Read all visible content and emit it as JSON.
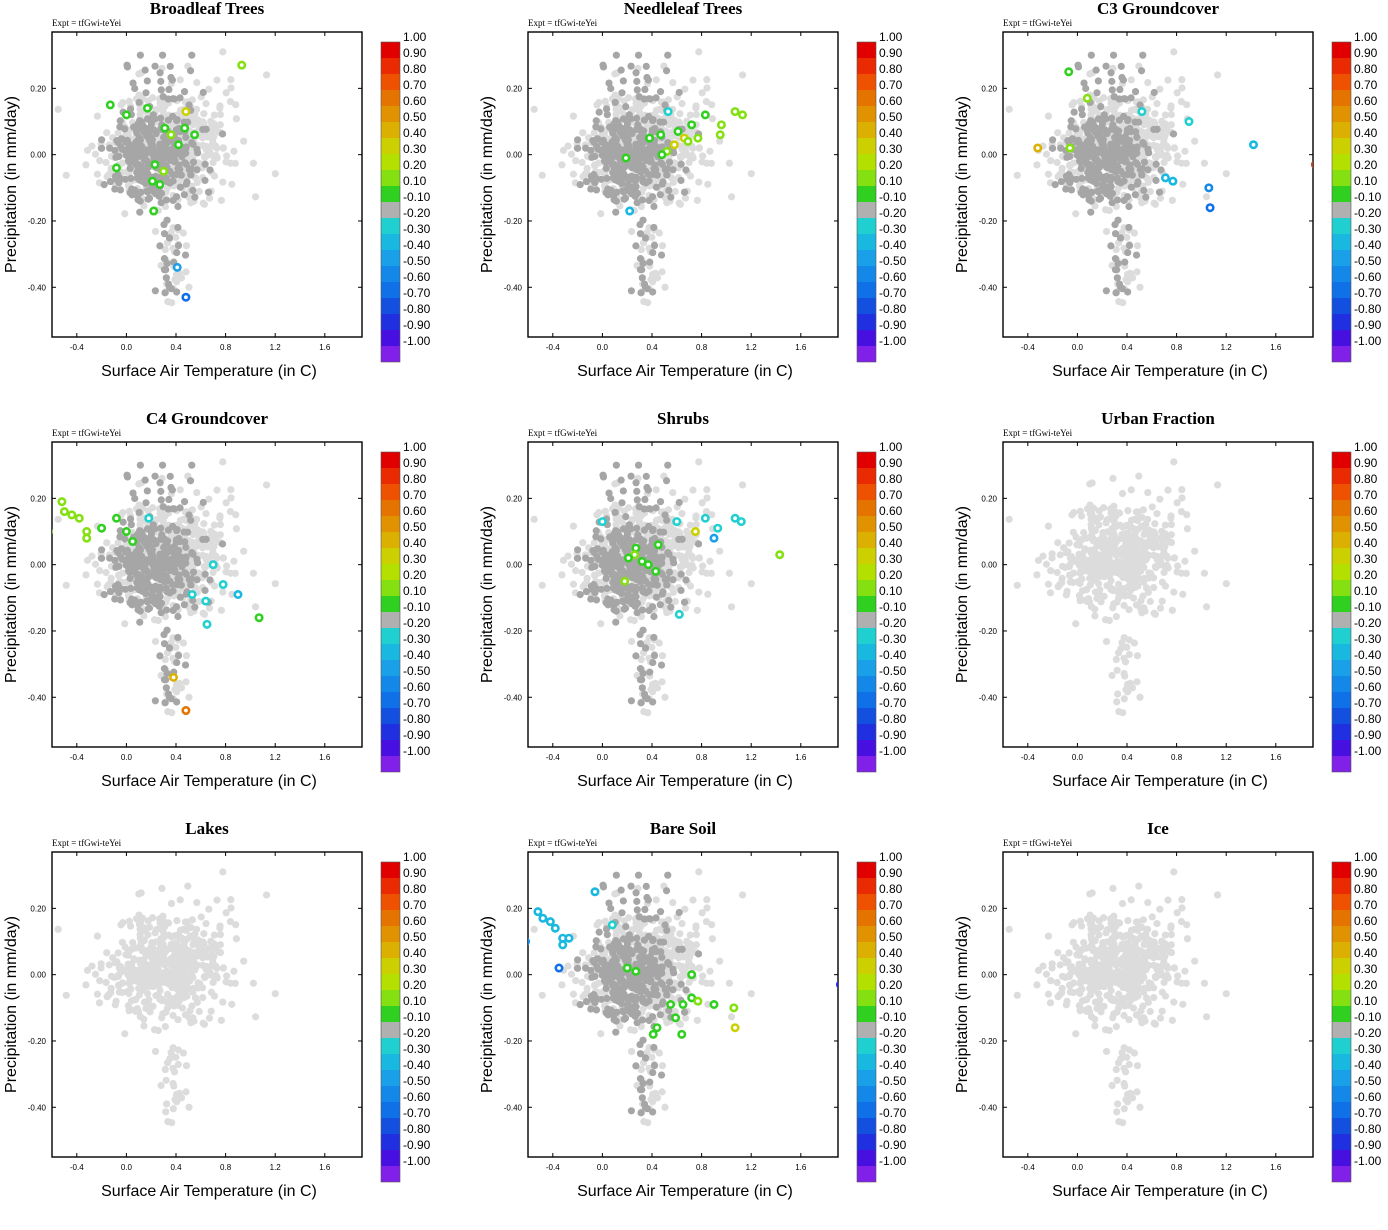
{
  "figure": {
    "expt_label": "Expt = tfGwi-teYei",
    "xlabel": "Surface Air Temperature (in C)",
    "ylabel": "Precipitation (in mm/day)",
    "xlim": [
      -0.6,
      1.9
    ],
    "ylim": [
      -0.55,
      0.37
    ],
    "xticks": [
      "-0.4",
      "0.0",
      "0.4",
      "0.8",
      "1.2",
      "1.6"
    ],
    "xtick_values": [
      -0.4,
      0.0,
      0.4,
      0.8,
      1.2,
      1.6
    ],
    "yticks": [
      "0.20",
      "0.00",
      "-0.20",
      "-0.40"
    ],
    "ytick_values": [
      0.2,
      0.0,
      -0.2,
      -0.4
    ]
  },
  "colorbar": {
    "labels": [
      "1.00",
      "0.90",
      "0.80",
      "0.70",
      "0.60",
      "0.50",
      "0.40",
      "0.30",
      "0.20",
      "0.10",
      "-0.10",
      "-0.20",
      "-0.30",
      "-0.40",
      "-0.50",
      "-0.60",
      "-0.70",
      "-0.80",
      "-0.90",
      "-1.00"
    ],
    "colors": [
      "#e00000",
      "#ea2a00",
      "#ee5200",
      "#e47300",
      "#e09200",
      "#dcb000",
      "#ccd000",
      "#b4e000",
      "#84e010",
      "#30d020",
      "#b0b0b0",
      "#20d0d0",
      "#18b8e0",
      "#1aa0e8",
      "#1488e8",
      "#1070e8",
      "#1450e0",
      "#2030e0",
      "#4810e0",
      "#8020e8"
    ]
  },
  "point_colors": {
    "light_gray": "#dcdcdc",
    "dark_gray": "#a6a6a6"
  },
  "chart_data": [
    {
      "type": "scatter",
      "title": "Broadleaf Trees",
      "highlight": [
        {
          "x": 0.93,
          "y": 0.27,
          "c": "#84e010"
        },
        {
          "x": -0.13,
          "y": 0.15,
          "c": "#30d020"
        },
        {
          "x": 0.0,
          "y": 0.12,
          "c": "#30d020"
        },
        {
          "x": 0.17,
          "y": 0.14,
          "c": "#30d020"
        },
        {
          "x": 0.48,
          "y": 0.13,
          "c": "#ccd000"
        },
        {
          "x": 0.31,
          "y": 0.08,
          "c": "#30d020"
        },
        {
          "x": 0.36,
          "y": 0.06,
          "c": "#84e010"
        },
        {
          "x": 0.47,
          "y": 0.08,
          "c": "#30d020"
        },
        {
          "x": 0.55,
          "y": 0.06,
          "c": "#30d020"
        },
        {
          "x": 0.42,
          "y": 0.03,
          "c": "#30d020"
        },
        {
          "x": -0.08,
          "y": -0.04,
          "c": "#30d020"
        },
        {
          "x": 0.23,
          "y": -0.03,
          "c": "#30d020"
        },
        {
          "x": 0.3,
          "y": -0.05,
          "c": "#84e010"
        },
        {
          "x": 0.27,
          "y": -0.09,
          "c": "#30d020"
        },
        {
          "x": 0.21,
          "y": -0.08,
          "c": "#30d020"
        },
        {
          "x": 0.22,
          "y": -0.17,
          "c": "#30d020"
        },
        {
          "x": 0.41,
          "y": -0.34,
          "c": "#1aa0e8"
        },
        {
          "x": 0.48,
          "y": -0.43,
          "c": "#1070e8"
        }
      ]
    },
    {
      "type": "scatter",
      "title": "Needleleaf Trees",
      "highlight": [
        {
          "x": 1.07,
          "y": 0.13,
          "c": "#84e010"
        },
        {
          "x": 1.13,
          "y": 0.12,
          "c": "#84e010"
        },
        {
          "x": 0.83,
          "y": 0.12,
          "c": "#30d020"
        },
        {
          "x": 0.72,
          "y": 0.09,
          "c": "#30d020"
        },
        {
          "x": 0.96,
          "y": 0.09,
          "c": "#84e010"
        },
        {
          "x": 0.95,
          "y": 0.06,
          "c": "#84e010"
        },
        {
          "x": 0.61,
          "y": 0.07,
          "c": "#30d020"
        },
        {
          "x": 0.47,
          "y": 0.06,
          "c": "#30d020"
        },
        {
          "x": 0.66,
          "y": 0.05,
          "c": "#ccd000"
        },
        {
          "x": 0.69,
          "y": 0.04,
          "c": "#84e010"
        },
        {
          "x": 0.77,
          "y": 0.05,
          "c": "#84e010"
        },
        {
          "x": 0.38,
          "y": 0.05,
          "c": "#30d020"
        },
        {
          "x": 0.58,
          "y": 0.03,
          "c": "#ccd000"
        },
        {
          "x": 0.52,
          "y": 0.01,
          "c": "#84e010"
        },
        {
          "x": 0.48,
          "y": 0.0,
          "c": "#30d020"
        },
        {
          "x": 0.19,
          "y": -0.01,
          "c": "#30d020"
        },
        {
          "x": 0.53,
          "y": 0.13,
          "c": "#20d0d0"
        },
        {
          "x": 0.22,
          "y": -0.17,
          "c": "#18b8e0"
        }
      ]
    },
    {
      "type": "scatter",
      "title": "C3 Groundcover",
      "highlight": [
        {
          "x": -0.07,
          "y": 0.25,
          "c": "#30d020"
        },
        {
          "x": 0.08,
          "y": 0.17,
          "c": "#84e010"
        },
        {
          "x": -0.06,
          "y": 0.02,
          "c": "#84e010"
        },
        {
          "x": -0.32,
          "y": 0.02,
          "c": "#dcb000"
        },
        {
          "x": 1.42,
          "y": 0.03,
          "c": "#18b8e0"
        },
        {
          "x": 0.71,
          "y": -0.07,
          "c": "#18b8e0"
        },
        {
          "x": 0.77,
          "y": -0.08,
          "c": "#18b8e0"
        },
        {
          "x": 1.06,
          "y": -0.1,
          "c": "#1488e8"
        },
        {
          "x": 1.07,
          "y": -0.16,
          "c": "#1070e8"
        },
        {
          "x": 1.92,
          "y": -0.03,
          "c": "#b84020"
        },
        {
          "x": 0.52,
          "y": 0.13,
          "c": "#20d0d0"
        },
        {
          "x": 0.9,
          "y": 0.1,
          "c": "#20d0d0"
        }
      ]
    },
    {
      "type": "scatter",
      "title": "C4 Groundcover",
      "highlight": [
        {
          "x": -0.52,
          "y": 0.19,
          "c": "#84e010"
        },
        {
          "x": -0.5,
          "y": 0.16,
          "c": "#84e010"
        },
        {
          "x": -0.44,
          "y": 0.15,
          "c": "#84e010"
        },
        {
          "x": -0.38,
          "y": 0.14,
          "c": "#84e010"
        },
        {
          "x": -0.32,
          "y": 0.1,
          "c": "#84e010"
        },
        {
          "x": -0.32,
          "y": 0.08,
          "c": "#84e010"
        },
        {
          "x": -0.2,
          "y": 0.11,
          "c": "#30d020"
        },
        {
          "x": -0.08,
          "y": 0.14,
          "c": "#30d020"
        },
        {
          "x": 0.0,
          "y": 0.1,
          "c": "#30d020"
        },
        {
          "x": 0.05,
          "y": 0.07,
          "c": "#30d020"
        },
        {
          "x": -0.63,
          "y": 0.1,
          "c": "#84e010"
        },
        {
          "x": 0.18,
          "y": 0.14,
          "c": "#20d0d0"
        },
        {
          "x": 0.7,
          "y": 0.0,
          "c": "#20d0d0"
        },
        {
          "x": 0.53,
          "y": -0.09,
          "c": "#20d0d0"
        },
        {
          "x": 0.64,
          "y": -0.11,
          "c": "#20d0d0"
        },
        {
          "x": 0.78,
          "y": -0.06,
          "c": "#20d0d0"
        },
        {
          "x": 0.9,
          "y": -0.09,
          "c": "#18b8e0"
        },
        {
          "x": 0.65,
          "y": -0.18,
          "c": "#20d0d0"
        },
        {
          "x": 1.07,
          "y": -0.16,
          "c": "#30d020"
        },
        {
          "x": 0.38,
          "y": -0.34,
          "c": "#dcb000"
        },
        {
          "x": 0.48,
          "y": -0.44,
          "c": "#e47300"
        }
      ]
    },
    {
      "type": "scatter",
      "title": "Shrubs",
      "highlight": [
        {
          "x": 1.07,
          "y": 0.14,
          "c": "#20d0d0"
        },
        {
          "x": 1.12,
          "y": 0.13,
          "c": "#20d0d0"
        },
        {
          "x": 0.83,
          "y": 0.14,
          "c": "#20d0d0"
        },
        {
          "x": 0.75,
          "y": 0.1,
          "c": "#ccd000"
        },
        {
          "x": 0.93,
          "y": 0.11,
          "c": "#20d0d0"
        },
        {
          "x": 0.9,
          "y": 0.08,
          "c": "#1aa0e8"
        },
        {
          "x": 0.6,
          "y": 0.13,
          "c": "#20d0d0"
        },
        {
          "x": 0.0,
          "y": 0.13,
          "c": "#20d0d0"
        },
        {
          "x": 1.43,
          "y": 0.03,
          "c": "#84e010"
        },
        {
          "x": 0.45,
          "y": 0.06,
          "c": "#30d020"
        },
        {
          "x": 0.27,
          "y": 0.05,
          "c": "#30d020"
        },
        {
          "x": 0.26,
          "y": 0.03,
          "c": "#84e010"
        },
        {
          "x": 0.21,
          "y": 0.02,
          "c": "#30d020"
        },
        {
          "x": 0.32,
          "y": 0.01,
          "c": "#30d020"
        },
        {
          "x": 0.37,
          "y": 0.0,
          "c": "#30d020"
        },
        {
          "x": 0.43,
          "y": -0.02,
          "c": "#30d020"
        },
        {
          "x": 0.18,
          "y": -0.05,
          "c": "#84e010"
        },
        {
          "x": 0.62,
          "y": -0.15,
          "c": "#20d0d0"
        }
      ]
    },
    {
      "type": "scatter",
      "title": "Urban Fraction",
      "highlight": []
    },
    {
      "type": "scatter",
      "title": "Lakes",
      "highlight": []
    },
    {
      "type": "scatter",
      "title": "Bare Soil",
      "highlight": [
        {
          "x": -0.52,
          "y": 0.19,
          "c": "#18b8e0"
        },
        {
          "x": -0.48,
          "y": 0.17,
          "c": "#18b8e0"
        },
        {
          "x": -0.42,
          "y": 0.16,
          "c": "#18b8e0"
        },
        {
          "x": -0.38,
          "y": 0.14,
          "c": "#18b8e0"
        },
        {
          "x": -0.32,
          "y": 0.11,
          "c": "#18b8e0"
        },
        {
          "x": -0.32,
          "y": 0.09,
          "c": "#18b8e0"
        },
        {
          "x": -0.27,
          "y": 0.11,
          "c": "#18b8e0"
        },
        {
          "x": -0.06,
          "y": 0.25,
          "c": "#18b8e0"
        },
        {
          "x": 0.08,
          "y": 0.15,
          "c": "#20d0d0"
        },
        {
          "x": -0.62,
          "y": 0.1,
          "c": "#1488e8"
        },
        {
          "x": -0.35,
          "y": 0.02,
          "c": "#1070e8"
        },
        {
          "x": 0.2,
          "y": 0.02,
          "c": "#30d020"
        },
        {
          "x": 0.27,
          "y": 0.01,
          "c": "#30d020"
        },
        {
          "x": 0.72,
          "y": 0.0,
          "c": "#30d020"
        },
        {
          "x": 0.72,
          "y": -0.07,
          "c": "#30d020"
        },
        {
          "x": 0.77,
          "y": -0.08,
          "c": "#84e010"
        },
        {
          "x": 0.65,
          "y": -0.09,
          "c": "#30d020"
        },
        {
          "x": 0.55,
          "y": -0.09,
          "c": "#30d020"
        },
        {
          "x": 0.9,
          "y": -0.09,
          "c": "#30d020"
        },
        {
          "x": 0.59,
          "y": -0.13,
          "c": "#30d020"
        },
        {
          "x": 0.44,
          "y": -0.16,
          "c": "#30d020"
        },
        {
          "x": 0.41,
          "y": -0.18,
          "c": "#30d020"
        },
        {
          "x": 0.64,
          "y": -0.18,
          "c": "#30d020"
        },
        {
          "x": 1.06,
          "y": -0.1,
          "c": "#84e010"
        },
        {
          "x": 1.07,
          "y": -0.16,
          "c": "#ccd000"
        },
        {
          "x": 1.92,
          "y": -0.03,
          "c": "#2030e0"
        }
      ]
    },
    {
      "type": "scatter",
      "title": "Ice",
      "highlight": []
    }
  ]
}
